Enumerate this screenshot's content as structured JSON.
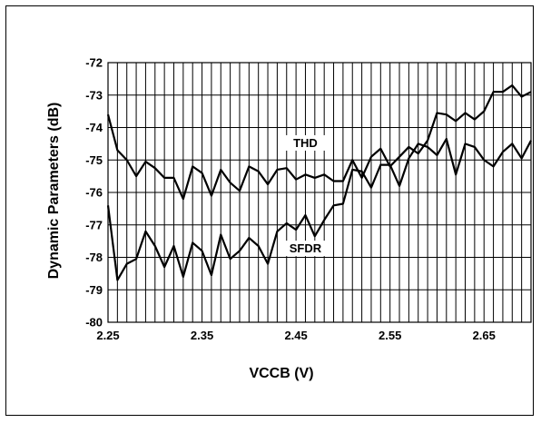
{
  "chart_data": {
    "type": "line",
    "title": "",
    "xlabel": "VCCB (V)",
    "ylabel": "Dynamic Parameters (dB)",
    "xlim": [
      2.25,
      2.7
    ],
    "ylim": [
      -80,
      -72
    ],
    "x_ticks": [
      2.25,
      2.35,
      2.45,
      2.55,
      2.65
    ],
    "x_tick_labels": [
      "2.25",
      "2.35",
      "2.45",
      "2.55",
      "2.65"
    ],
    "y_ticks": [
      -72,
      -73,
      -74,
      -75,
      -76,
      -77,
      -78,
      -79,
      -80
    ],
    "y_tick_labels": [
      "-72",
      "-73",
      "-74",
      "-75",
      "-76",
      "-77",
      "-78",
      "-79",
      "-80"
    ],
    "x_grid_step": 0.01,
    "grid": true,
    "legend": "none",
    "x": [
      2.25,
      2.26,
      2.27,
      2.28,
      2.29,
      2.3,
      2.31,
      2.32,
      2.33,
      2.34,
      2.35,
      2.36,
      2.37,
      2.38,
      2.39,
      2.4,
      2.41,
      2.42,
      2.43,
      2.44,
      2.45,
      2.46,
      2.47,
      2.48,
      2.49,
      2.5,
      2.51,
      2.52,
      2.53,
      2.54,
      2.55,
      2.56,
      2.57,
      2.58,
      2.59,
      2.6,
      2.61,
      2.62,
      2.63,
      2.64,
      2.65,
      2.66,
      2.67,
      2.68,
      2.69,
      2.7
    ],
    "series": [
      {
        "name": "THD",
        "label_at": [
          2.46,
          -74.6
        ],
        "values": [
          -73.6,
          -74.7,
          -75.0,
          -75.5,
          -75.05,
          -75.25,
          -75.55,
          -75.55,
          -76.2,
          -75.2,
          -75.4,
          -76.1,
          -75.3,
          -75.7,
          -75.95,
          -75.2,
          -75.35,
          -75.75,
          -75.3,
          -75.25,
          -75.6,
          -75.45,
          -75.55,
          -75.45,
          -75.65,
          -75.65,
          -75.0,
          -75.55,
          -74.9,
          -74.65,
          -75.2,
          -74.9,
          -74.6,
          -74.8,
          -74.4,
          -73.55,
          -73.6,
          -73.8,
          -73.55,
          -73.75,
          -73.5,
          -72.9,
          -72.9,
          -72.7,
          -73.05,
          -72.9
        ]
      },
      {
        "name": "SFDR",
        "label_at": [
          2.46,
          -77.85
        ],
        "values": [
          -76.4,
          -78.7,
          -78.2,
          -78.05,
          -77.2,
          -77.65,
          -78.3,
          -77.65,
          -78.6,
          -77.55,
          -77.8,
          -78.55,
          -77.3,
          -78.05,
          -77.8,
          -77.4,
          -77.65,
          -78.2,
          -77.2,
          -76.95,
          -77.15,
          -76.7,
          -77.35,
          -76.85,
          -76.4,
          -76.35,
          -75.3,
          -75.35,
          -75.85,
          -75.15,
          -75.15,
          -75.8,
          -74.95,
          -74.5,
          -74.6,
          -74.85,
          -74.35,
          -75.45,
          -74.5,
          -74.6,
          -75.0,
          -75.2,
          -74.75,
          -74.5,
          -74.95,
          -74.4
        ]
      }
    ]
  }
}
